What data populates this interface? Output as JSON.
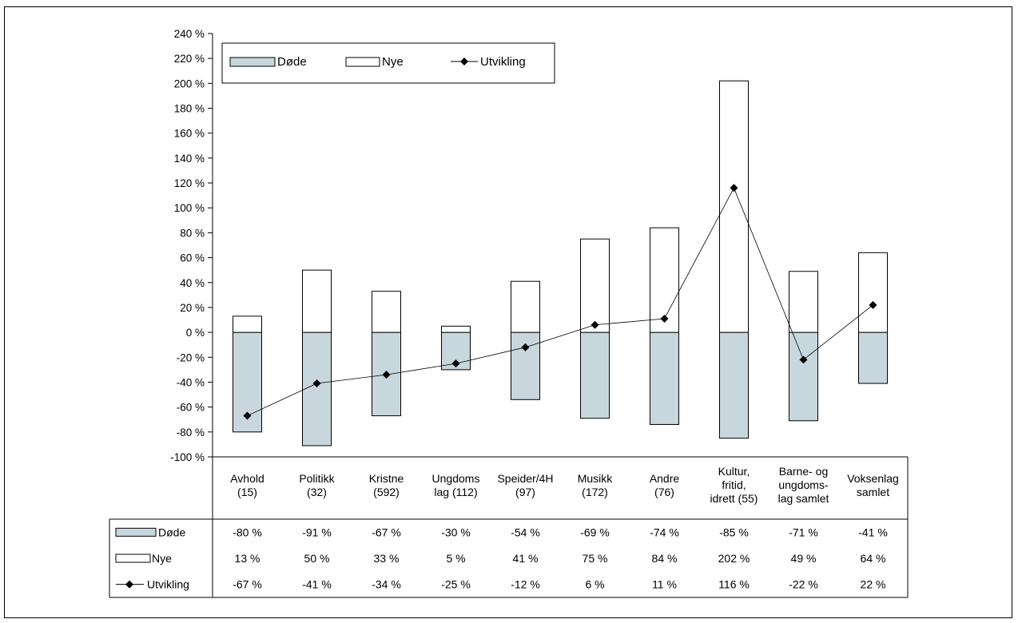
{
  "colors": {
    "dode_fill": "#c8d7de",
    "nye_fill": "#ffffff",
    "stroke": "#000000"
  },
  "chart_data": {
    "type": "bar",
    "stacked": true,
    "categories": [
      [
        "Avhold",
        "(15)"
      ],
      [
        "Politikk",
        "(32)"
      ],
      [
        "Kristne",
        "(592)"
      ],
      [
        "Ungdoms",
        "lag (112)"
      ],
      [
        "Speider/4H",
        "(97)"
      ],
      [
        "Musikk",
        "(172)"
      ],
      [
        "Andre",
        "(76)"
      ],
      [
        "Kultur,",
        "fritid,",
        "idrett (55)"
      ],
      [
        "Barne- og",
        "ungdoms-",
        "lag samlet"
      ],
      [
        "Voksenlag",
        "samlet"
      ]
    ],
    "series": [
      {
        "name": "Døde",
        "type": "bar",
        "values": [
          -80,
          -91,
          -67,
          -30,
          -54,
          -69,
          -74,
          -85,
          -71,
          -41
        ],
        "labels": [
          "-80 %",
          "-91 %",
          "-67 %",
          "-30 %",
          "-54 %",
          "-69 %",
          "-74 %",
          "-85 %",
          "-71 %",
          "-41 %"
        ]
      },
      {
        "name": "Nye",
        "type": "bar",
        "values": [
          13,
          50,
          33,
          5,
          41,
          75,
          84,
          202,
          49,
          64
        ],
        "labels": [
          "13 %",
          "50 %",
          "33 %",
          "5 %",
          "41 %",
          "75 %",
          "84 %",
          "202 %",
          "49 %",
          "64 %"
        ]
      },
      {
        "name": "Utvikling",
        "type": "line",
        "values": [
          -67,
          -41,
          -34,
          -25,
          -12,
          6,
          11,
          116,
          -22,
          22
        ],
        "labels": [
          "-67 %",
          "-41 %",
          "-34 %",
          "-25 %",
          "-12 %",
          "6 %",
          "11 %",
          "116 %",
          "-22 %",
          "22 %"
        ]
      }
    ],
    "ylim": [
      -100,
      240
    ],
    "yticks": [
      240,
      220,
      200,
      180,
      160,
      140,
      120,
      100,
      80,
      60,
      40,
      20,
      0,
      -20,
      -40,
      -60,
      -80,
      -100
    ],
    "ytick_labels": [
      "240 %",
      "220 %",
      "200 %",
      "180 %",
      "160 %",
      "140 %",
      "120 %",
      "100 %",
      "80 %",
      "60 %",
      "40 %",
      "20 %",
      "0 %",
      "-20 %",
      "-40 %",
      "-60 %",
      "-80 %",
      "-100 %"
    ],
    "legend": {
      "placement": "top-left",
      "entries": [
        "Døde",
        "Nye",
        "Utvikling"
      ]
    },
    "data_table": true
  }
}
